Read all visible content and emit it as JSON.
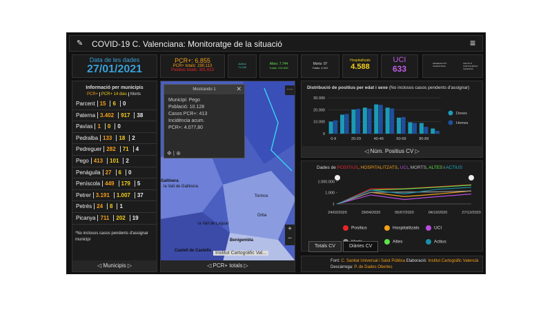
{
  "header": {
    "title": "COVID-19 C. Valenciana: Monitoratge de la situació"
  },
  "date_box": {
    "label": "Data de les dades",
    "value": "27/01/2021"
  },
  "pcr_box": {
    "daily": "PCR+: 6.855",
    "total": "PCR+ totals: 290.113",
    "positives": "Positius totals: 301.613"
  },
  "actius_box": {
    "label": "Actius",
    "value": "71.043"
  },
  "altes_box": {
    "daily": "Altes: 7.744",
    "total": "Totals: 234.655"
  },
  "morts_box": {
    "daily": "Morts: 97",
    "total": "Totals: 4.312"
  },
  "hosp_box": {
    "label": "Hospitalitzats",
    "value": "4.588"
  },
  "uci_box": {
    "label": "UCI",
    "value": "633"
  },
  "logos": [
    "GENERALITAT VALENCIANA",
    "INSTITUT CARTOGRÀFIC VALENCIÀ"
  ],
  "municipalities": {
    "title": "Informació per municipis",
    "columns": [
      "PCR+",
      "PCR+ 14 dies",
      "Morts"
    ],
    "rows": [
      [
        "Parcent",
        "15",
        "6",
        "0"
      ],
      [
        "Paterna",
        "3.402",
        "917",
        "38"
      ],
      [
        "Pavías",
        "1",
        "0",
        "0"
      ],
      [
        "Pedralba",
        "133",
        "18",
        "2"
      ],
      [
        "Pedreguer",
        "282",
        "71",
        "4"
      ],
      [
        "Pego",
        "413",
        "101",
        "2"
      ],
      [
        "Penàguila",
        "27",
        "6",
        "0"
      ],
      [
        "Peníscola",
        "449",
        "179",
        "5"
      ],
      [
        "Petrer",
        "3.191",
        "1.007",
        "37"
      ],
      [
        "Petrés",
        "24",
        "8",
        "1"
      ],
      [
        "Picanya",
        "711",
        "202",
        "19"
      ],
      [
        "Picassent",
        "1.350",
        "435",
        "20"
      ]
    ],
    "note": "*No inclosos casos pendents d'assignar municipi",
    "footer": "Municipis"
  },
  "map": {
    "popup_title": "Mostrando 1",
    "popup_lines": [
      "Municipi: Pego",
      "Població: 10.128",
      "Casos PCR+: 413",
      "Incidència acum.",
      "PCR+: 4.077,80"
    ],
    "labels": [
      "Gallinera",
      "la Vall de Gallinera",
      "Tormos",
      "Benigembla",
      "Castell de Castells",
      "la Vall de Laguar",
      "Orba"
    ],
    "attribution": "Institut Cartogràfic Val...",
    "footer": "PCR+ totals"
  },
  "age_chart": {
    "type": "bar",
    "title": "Distribució de positius per edat i sexe",
    "subtitle": "(No inclosos casos pendents d'assignar)",
    "categories": [
      "0-9",
      null,
      "20-29",
      null,
      "40-49",
      null,
      "60-69",
      null,
      "80-89",
      null
    ],
    "series": [
      {
        "name": "Dones",
        "color": "#1b9bb8",
        "values": [
          10063,
          15900,
          20200,
          21800,
          24500,
          21800,
          13400,
          9500,
          8900,
          4300
        ]
      },
      {
        "name": "Homes",
        "color": "#1f4f9c",
        "values": [
          11124,
          16500,
          20800,
          21000,
          24100,
          21100,
          13900,
          9000,
          5700,
          2300
        ]
      }
    ],
    "ylim": [
      0,
      30000
    ],
    "yticks": [
      0,
      {
        "value": 10000,
        "label": "10.000"
      },
      {
        "value": 20000,
        "label": "20.000"
      },
      {
        "value": 30000,
        "label": "30.000"
      }
    ],
    "footer": "Núm. Positius CV"
  },
  "trend_chart": {
    "type": "line",
    "title_parts": [
      "Dades de ",
      "POSITIUS",
      ", ",
      "HOSPITALITZATS",
      ", ",
      "UCI",
      ", ",
      "MORTS",
      ", ",
      "ALTES",
      " i ",
      "ACTIUS"
    ],
    "x": [
      "24/02/2020",
      "29/04/2020",
      "05/07/2020",
      "04/10/2020",
      "27/12/2020"
    ],
    "log_scale": true,
    "ylim": [
      1,
      10000000
    ],
    "yticks": [
      1,
      {
        "value": 1000,
        "label": "1.000"
      },
      {
        "value": 1000000,
        "label": "1.000.000"
      }
    ],
    "series": [
      {
        "name": "Positius",
        "color": "#e8262b",
        "values": [
          1,
          11000,
          12000,
          40000,
          140000
        ]
      },
      {
        "name": "Hospitalitzats",
        "color": "#f5a01a",
        "values": [
          1,
          1300,
          90,
          450,
          3000
        ]
      },
      {
        "name": "UCI",
        "color": "#b64ee0",
        "values": [
          1,
          250,
          15,
          90,
          450
        ]
      },
      {
        "name": "Morts",
        "color": "#9a9a9a",
        "values": [
          1,
          1300,
          1450,
          1700,
          2900
        ]
      },
      {
        "name": "Altes",
        "color": "#5fe34a",
        "values": [
          1,
          5000,
          10000,
          30000,
          110000
        ]
      },
      {
        "name": "Actius",
        "color": "#1a8fa8",
        "values": [
          1,
          5000,
          500,
          8000,
          27000
        ]
      }
    ],
    "tabs": [
      "Totals CV",
      "Diàries CV"
    ]
  },
  "source": {
    "label1": "Font:",
    "text1": "C. Sanitat Universal i Salut Pública",
    "label2": "Elaboració:",
    "text2": "Institut Cartogràfic Valencià",
    "label3": "Descàrrega:",
    "text3": "P. de Dades Obertes"
  }
}
